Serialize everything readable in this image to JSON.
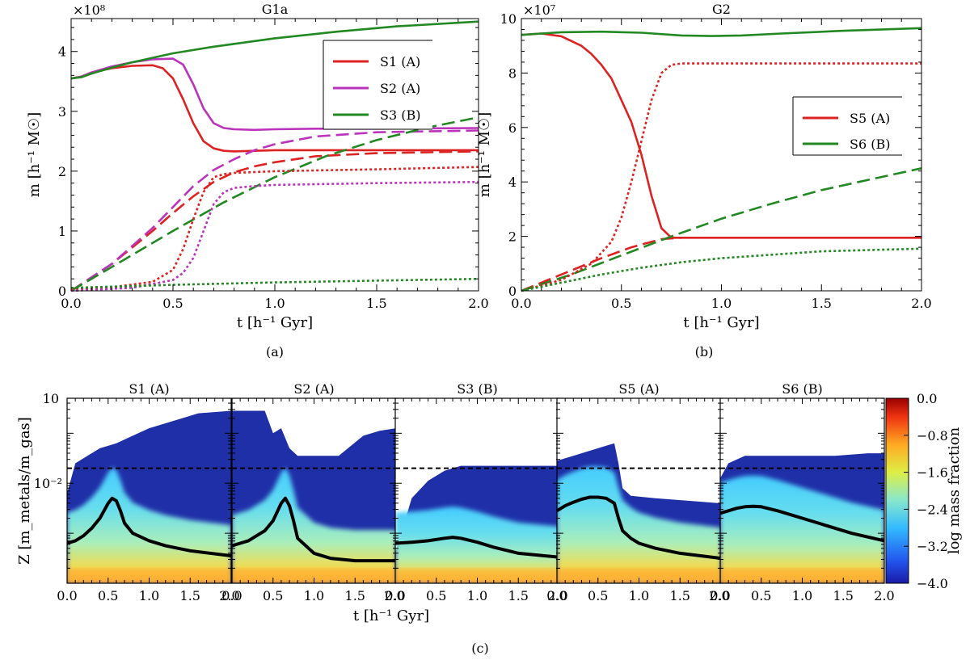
{
  "figure": {
    "sub_labels": [
      "(a)",
      "(b)",
      "(c)"
    ]
  },
  "chart_data": [
    {
      "id": "a",
      "type": "line",
      "title": "G1a",
      "xlabel": "t [h⁻¹ Gyr]",
      "ylabel": "m [h⁻¹ M☉]",
      "offset_text": "×10⁸",
      "xlim": [
        0,
        2.0
      ],
      "ylim": [
        0,
        4.55
      ],
      "xticks": [
        0,
        0.5,
        1.0,
        1.5,
        2.0
      ],
      "xtick_labels": [
        "0.0",
        "0.5",
        "1.0",
        "1.5",
        "2.0"
      ],
      "yticks": [
        0,
        1,
        2,
        3,
        4
      ],
      "ytick_labels": [
        "0",
        "1",
        "2",
        "3",
        "4"
      ],
      "legend_position": "top-right",
      "legend": [
        {
          "label": "S1 (A)",
          "color": "#dd2222"
        },
        {
          "label": "S2 (A)",
          "color": "#bb33bb"
        },
        {
          "label": "S3 (B)",
          "color": "#228822"
        }
      ],
      "series": [
        {
          "name": "S1 (A)",
          "style": "solid",
          "color": "#dd2222",
          "x": [
            0,
            0.05,
            0.1,
            0.2,
            0.3,
            0.4,
            0.45,
            0.5,
            0.55,
            0.6,
            0.65,
            0.7,
            0.75,
            0.8,
            0.9,
            1.0,
            1.2,
            1.5,
            2.0
          ],
          "y": [
            3.55,
            3.58,
            3.65,
            3.72,
            3.76,
            3.77,
            3.72,
            3.55,
            3.2,
            2.8,
            2.5,
            2.38,
            2.34,
            2.33,
            2.34,
            2.35,
            2.35,
            2.35,
            2.35
          ]
        },
        {
          "name": "S2 (A)",
          "style": "solid",
          "color": "#bb33bb",
          "x": [
            0,
            0.05,
            0.1,
            0.2,
            0.3,
            0.4,
            0.5,
            0.55,
            0.6,
            0.65,
            0.7,
            0.75,
            0.8,
            0.9,
            1.0,
            1.2,
            1.5,
            2.0
          ],
          "y": [
            3.55,
            3.58,
            3.65,
            3.75,
            3.82,
            3.87,
            3.88,
            3.78,
            3.45,
            3.05,
            2.8,
            2.72,
            2.7,
            2.69,
            2.7,
            2.71,
            2.71,
            2.72
          ]
        },
        {
          "name": "S3 (B)",
          "style": "solid",
          "color": "#228822",
          "x": [
            0,
            0.05,
            0.1,
            0.2,
            0.3,
            0.5,
            0.7,
            1.0,
            1.3,
            1.6,
            2.0
          ],
          "y": [
            3.55,
            3.57,
            3.63,
            3.73,
            3.82,
            3.97,
            4.08,
            4.22,
            4.33,
            4.42,
            4.5
          ]
        },
        {
          "name": "S1 (A) dashed",
          "style": "dashed",
          "color": "#dd2222",
          "x": [
            0,
            0.2,
            0.4,
            0.5,
            0.6,
            0.7,
            0.8,
            0.9,
            1.0,
            1.2,
            1.5,
            2.0
          ],
          "y": [
            0,
            0.45,
            1.0,
            1.3,
            1.58,
            1.82,
            1.98,
            2.08,
            2.15,
            2.25,
            2.3,
            2.33
          ]
        },
        {
          "name": "S2 (A) dashed",
          "style": "dashed",
          "color": "#bb33bb",
          "x": [
            0,
            0.2,
            0.4,
            0.5,
            0.6,
            0.7,
            0.8,
            0.9,
            1.0,
            1.2,
            1.5,
            2.0
          ],
          "y": [
            0,
            0.45,
            1.05,
            1.4,
            1.75,
            2.02,
            2.2,
            2.35,
            2.45,
            2.58,
            2.65,
            2.68
          ]
        },
        {
          "name": "S3 (B) dashed",
          "style": "dashed",
          "color": "#228822",
          "x": [
            0,
            0.25,
            0.5,
            0.75,
            1.0,
            1.25,
            1.5,
            1.75,
            2.0
          ],
          "y": [
            0,
            0.5,
            1.0,
            1.48,
            1.9,
            2.25,
            2.52,
            2.73,
            2.9
          ]
        },
        {
          "name": "S1 (A) dotted",
          "style": "dotted",
          "color": "#dd2222",
          "x": [
            0,
            0.2,
            0.4,
            0.5,
            0.55,
            0.6,
            0.65,
            0.7,
            0.75,
            0.8,
            1.0,
            1.5,
            2.0
          ],
          "y": [
            0.02,
            0.06,
            0.15,
            0.35,
            0.7,
            1.2,
            1.65,
            1.9,
            1.95,
            1.97,
            2.0,
            2.03,
            2.07
          ]
        },
        {
          "name": "S2 (A) dotted",
          "style": "dotted",
          "color": "#bb33bb",
          "x": [
            0,
            0.3,
            0.5,
            0.55,
            0.6,
            0.65,
            0.7,
            0.75,
            0.8,
            0.9,
            1.0,
            1.5,
            2.0
          ],
          "y": [
            0,
            0.05,
            0.18,
            0.3,
            0.55,
            1.0,
            1.45,
            1.65,
            1.72,
            1.75,
            1.77,
            1.8,
            1.82
          ]
        },
        {
          "name": "S3 (B) dotted",
          "style": "dotted",
          "color": "#228822",
          "x": [
            0,
            0.5,
            1.0,
            1.5,
            2.0
          ],
          "y": [
            0.05,
            0.1,
            0.14,
            0.17,
            0.2
          ]
        }
      ]
    },
    {
      "id": "b",
      "type": "line",
      "title": "G2",
      "xlabel": "t [h⁻¹ Gyr]",
      "ylabel": "m [h⁻¹ M☉]",
      "offset_text": "×10⁷",
      "xlim": [
        0,
        2.0
      ],
      "ylim": [
        0,
        10
      ],
      "xticks": [
        0,
        0.5,
        1.0,
        1.5,
        2.0
      ],
      "xtick_labels": [
        "0.0",
        "0.5",
        "1.0",
        "1.5",
        "2.0"
      ],
      "yticks": [
        0,
        2,
        4,
        6,
        8,
        10
      ],
      "ytick_labels": [
        "0",
        "2",
        "4",
        "6",
        "8",
        "10"
      ],
      "legend_position": "center-right",
      "legend": [
        {
          "label": "S5 (A)",
          "color": "#dd2222"
        },
        {
          "label": "S6 (B)",
          "color": "#228822"
        }
      ],
      "series": [
        {
          "name": "S5 (A)",
          "style": "solid",
          "color": "#dd2222",
          "x": [
            0,
            0.1,
            0.2,
            0.3,
            0.35,
            0.4,
            0.45,
            0.5,
            0.55,
            0.6,
            0.65,
            0.7,
            0.75,
            0.8,
            1.0,
            1.5,
            2.0
          ],
          "y": [
            9.4,
            9.45,
            9.35,
            9.0,
            8.7,
            8.3,
            7.8,
            7.0,
            6.2,
            5.0,
            3.5,
            2.3,
            1.95,
            1.95,
            1.95,
            1.95,
            1.95
          ]
        },
        {
          "name": "S6 (B)",
          "style": "solid",
          "color": "#228822",
          "x": [
            0,
            0.1,
            0.2,
            0.4,
            0.6,
            0.8,
            0.95,
            1.1,
            1.3,
            1.6,
            2.0
          ],
          "y": [
            9.4,
            9.45,
            9.5,
            9.52,
            9.48,
            9.38,
            9.36,
            9.38,
            9.45,
            9.55,
            9.65
          ]
        },
        {
          "name": "S5 (A) dashed",
          "style": "dashed",
          "color": "#dd2222",
          "x": [
            0,
            0.2,
            0.4,
            0.55,
            0.7,
            0.8
          ],
          "y": [
            0,
            0.6,
            1.2,
            1.6,
            1.9,
            1.95
          ]
        },
        {
          "name": "S6 (B) dashed",
          "style": "dashed",
          "color": "#228822",
          "x": [
            0,
            0.25,
            0.5,
            0.75,
            1.0,
            1.25,
            1.5,
            1.75,
            2.0
          ],
          "y": [
            0,
            0.6,
            1.3,
            2.0,
            2.65,
            3.2,
            3.7,
            4.1,
            4.5
          ]
        },
        {
          "name": "S5 (A) dotted",
          "style": "dotted",
          "color": "#dd2222",
          "x": [
            0,
            0.2,
            0.35,
            0.45,
            0.5,
            0.55,
            0.6,
            0.65,
            0.7,
            0.75,
            0.8,
            1.0,
            1.5,
            2.0
          ],
          "y": [
            0,
            0.4,
            1.0,
            1.8,
            2.7,
            4.0,
            5.5,
            7.0,
            8.0,
            8.3,
            8.35,
            8.35,
            8.35,
            8.35
          ]
        },
        {
          "name": "S6 (B) dotted",
          "style": "dotted",
          "color": "#228822",
          "x": [
            0,
            0.2,
            0.4,
            0.6,
            0.8,
            1.0,
            1.2,
            1.5,
            2.0
          ],
          "y": [
            0,
            0.3,
            0.6,
            0.85,
            1.05,
            1.2,
            1.3,
            1.45,
            1.55
          ]
        }
      ]
    },
    {
      "id": "c",
      "type": "heatmap",
      "xlabel": "t [h⁻¹ Gyr]",
      "ylabel": "Z [m_metals/m_gas]",
      "ytick_labels": [
        "10⁻²"
      ],
      "y_top_label": "10",
      "xlim": [
        0,
        2.0
      ],
      "xtick_labels": [
        "0.0",
        "0.5",
        "1.0",
        "1.5"
      ],
      "xtick_label_last": "2.0",
      "colorbar": {
        "label": "log mass fraction",
        "range": [
          -4.0,
          0.0
        ],
        "ticks": [
          0.0,
          -0.8,
          -1.6,
          -2.4,
          -3.2,
          -4.0
        ],
        "tick_labels": [
          "0.0",
          "−0.8",
          "−1.6",
          "−2.4",
          "−3.2",
          "−4.0"
        ]
      },
      "reference_line_logZ": -1.7,
      "panels": [
        {
          "title": "S1 (A)",
          "median_x": [
            0,
            0.1,
            0.2,
            0.3,
            0.4,
            0.5,
            0.55,
            0.6,
            0.65,
            0.7,
            0.8,
            1.0,
            1.2,
            1.5,
            2.0
          ],
          "median_logZ": [
            -3.2,
            -3.15,
            -3.05,
            -2.9,
            -2.7,
            -2.4,
            -2.3,
            -2.35,
            -2.55,
            -2.8,
            -3.0,
            -3.15,
            -3.25,
            -3.35,
            -3.45
          ],
          "upper_logZ_x": [
            0,
            0.1,
            0.2,
            0.4,
            0.6,
            0.8,
            1.0,
            1.3,
            1.6,
            2.0
          ],
          "upper_logZ": [
            -2.2,
            -1.6,
            -1.5,
            -1.3,
            -1.2,
            -1.05,
            -0.9,
            -0.75,
            -0.6,
            -0.55
          ]
        },
        {
          "title": "S2 (A)",
          "median_x": [
            0,
            0.1,
            0.2,
            0.3,
            0.4,
            0.5,
            0.6,
            0.65,
            0.7,
            0.75,
            0.8,
            1.0,
            1.2,
            1.5,
            2.0
          ],
          "median_logZ": [
            -3.25,
            -3.2,
            -3.15,
            -3.05,
            -2.95,
            -2.75,
            -2.4,
            -2.3,
            -2.45,
            -2.75,
            -3.1,
            -3.4,
            -3.5,
            -3.55,
            -3.55
          ],
          "upper_logZ_x": [
            0,
            0.4,
            0.5,
            0.6,
            0.7,
            0.8,
            1.0,
            1.3,
            1.6,
            1.8,
            2.0
          ],
          "upper_logZ": [
            -0.55,
            -0.55,
            -1.0,
            -0.9,
            -1.3,
            -1.45,
            -1.45,
            -1.45,
            -1.05,
            -0.95,
            -0.9
          ]
        },
        {
          "title": "S3 (B)",
          "median_x": [
            0,
            0.2,
            0.4,
            0.6,
            0.7,
            0.8,
            1.0,
            1.2,
            1.5,
            2.0
          ],
          "median_logZ": [
            -3.2,
            -3.18,
            -3.15,
            -3.1,
            -3.08,
            -3.1,
            -3.18,
            -3.28,
            -3.4,
            -3.48
          ],
          "upper_logZ_x": [
            0,
            0.2,
            0.4,
            0.6,
            0.8,
            1.0,
            1.4,
            2.0
          ],
          "upper_logZ": [
            -3.4,
            -2.3,
            -1.95,
            -1.75,
            -1.65,
            -1.65,
            -1.65,
            -1.65
          ]
        },
        {
          "title": "S5 (A)",
          "median_x": [
            0,
            0.1,
            0.2,
            0.3,
            0.4,
            0.5,
            0.6,
            0.7,
            0.75,
            0.8,
            0.9,
            1.0,
            1.2,
            1.5,
            2.0
          ],
          "median_logZ": [
            -2.55,
            -2.45,
            -2.38,
            -2.32,
            -2.28,
            -2.28,
            -2.3,
            -2.4,
            -2.7,
            -2.95,
            -3.1,
            -3.2,
            -3.3,
            -3.4,
            -3.5
          ],
          "upper_logZ_x": [
            0,
            0.2,
            0.4,
            0.6,
            0.7,
            0.75,
            0.8,
            0.9,
            1.2,
            1.6,
            2.0
          ],
          "upper_logZ": [
            -1.55,
            -1.45,
            -1.35,
            -1.25,
            -1.2,
            -1.6,
            -2.1,
            -2.25,
            -2.3,
            -2.35,
            -2.4
          ]
        },
        {
          "title": "S6 (B)",
          "median_x": [
            0,
            0.1,
            0.2,
            0.3,
            0.4,
            0.5,
            0.7,
            1.0,
            1.3,
            1.6,
            2.0
          ],
          "median_logZ": [
            -2.6,
            -2.55,
            -2.5,
            -2.47,
            -2.46,
            -2.47,
            -2.55,
            -2.7,
            -2.85,
            -3.0,
            -3.15
          ],
          "upper_logZ_x": [
            0,
            0.1,
            0.3,
            0.6,
            1.0,
            1.4,
            1.8,
            2.0
          ],
          "upper_logZ": [
            -1.9,
            -1.6,
            -1.45,
            -1.45,
            -1.45,
            -1.45,
            -1.4,
            -1.4
          ]
        }
      ]
    }
  ]
}
